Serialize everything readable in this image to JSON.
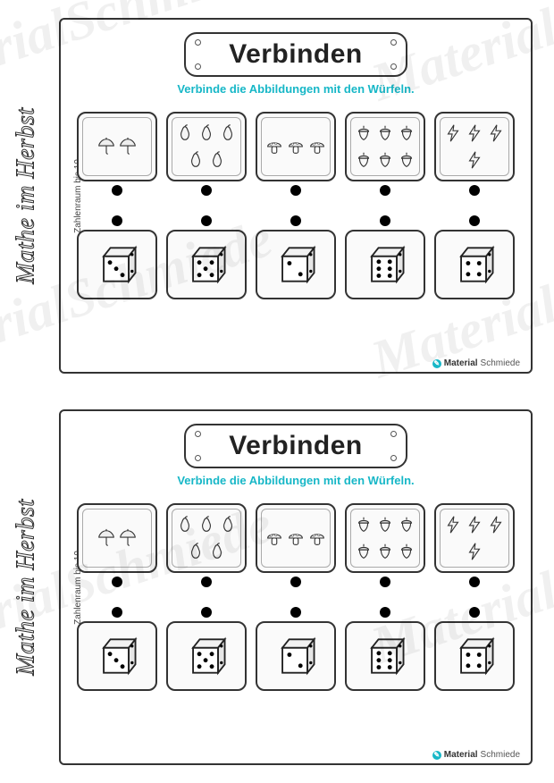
{
  "watermark_text": "MaterialSchmiede",
  "instruction_color": "#17b7c7",
  "footer_accent_color": "#17b7c7",
  "worksheets": [
    {
      "sidebar_title": "Mathe im Herbst",
      "sidebar_subtitle": "Zahlenraum bis 10",
      "title": "Verbinden",
      "instruction": "Verbinde die Abbildungen mit den Würfeln.",
      "picture_tiles": [
        {
          "icon": "umbrella",
          "count": 2
        },
        {
          "icon": "pear",
          "count": 5
        },
        {
          "icon": "mushroom",
          "count": 3
        },
        {
          "icon": "acorn",
          "count": 6
        },
        {
          "icon": "lightning",
          "count": 4
        }
      ],
      "dice_tiles": [
        {
          "value": 3
        },
        {
          "value": 5
        },
        {
          "value": 2
        },
        {
          "value": 6
        },
        {
          "value": 4
        }
      ],
      "footer_brand_bold": "Material",
      "footer_brand_light": "Schmiede"
    },
    {
      "sidebar_title": "Mathe im Herbst",
      "sidebar_subtitle": "Zahlenraum bis 10",
      "title": "Verbinden",
      "instruction": "Verbinde die Abbildungen mit den Würfeln.",
      "picture_tiles": [
        {
          "icon": "umbrella",
          "count": 2
        },
        {
          "icon": "pear",
          "count": 5
        },
        {
          "icon": "mushroom",
          "count": 3
        },
        {
          "icon": "acorn",
          "count": 6
        },
        {
          "icon": "lightning",
          "count": 4
        }
      ],
      "dice_tiles": [
        {
          "value": 3
        },
        {
          "value": 5
        },
        {
          "value": 2
        },
        {
          "value": 6
        },
        {
          "value": 4
        }
      ],
      "footer_brand_bold": "Material",
      "footer_brand_light": "Schmiede"
    }
  ]
}
